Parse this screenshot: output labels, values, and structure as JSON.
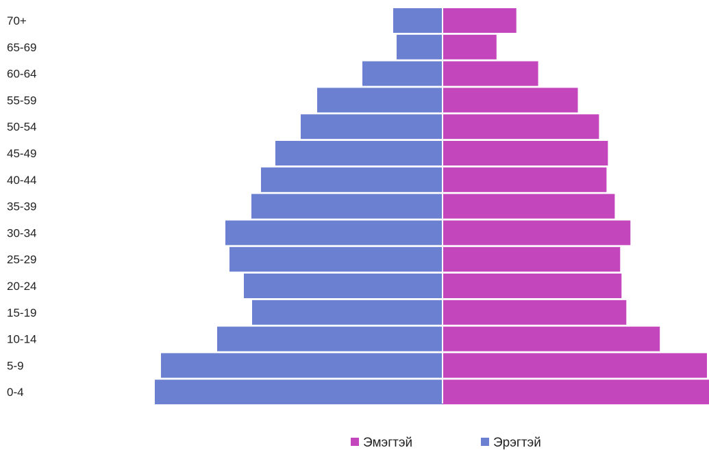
{
  "chart_data": {
    "type": "bar",
    "orientation": "horizontal",
    "subtype": "population-pyramid",
    "categories": [
      "70+",
      "65-69",
      "60-64",
      "55-59",
      "50-54",
      "45-49",
      "40-44",
      "35-39",
      "30-34",
      "25-29",
      "20-24",
      "15-19",
      "10-14",
      "5-9",
      "0-4"
    ],
    "series": [
      {
        "name": "Эрэгтэй",
        "side": "left",
        "color": "#6b80d0",
        "values": [
          72,
          67,
          117,
          183,
          207,
          244,
          265,
          279,
          317,
          311,
          290,
          278,
          329,
          411,
          420
        ]
      },
      {
        "name": "Эмэгтэй",
        "side": "right",
        "color": "#c346bd",
        "values": [
          108,
          79,
          140,
          198,
          229,
          242,
          240,
          252,
          275,
          260,
          262,
          269,
          318,
          387,
          390
        ]
      }
    ],
    "xlim": [
      -420,
      390
    ],
    "legend": {
      "position": "bottom-center",
      "items": [
        "Эмэгтэй",
        "Эрэгтэй"
      ]
    },
    "grid": false
  }
}
